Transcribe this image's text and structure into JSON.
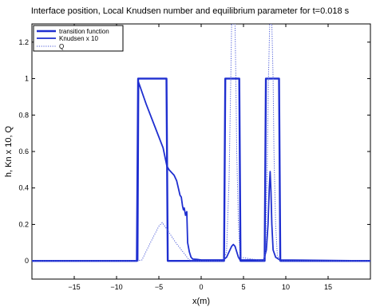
{
  "chart_data": {
    "type": "line",
    "title": "Interface position, Local Knudsen number and equilibrium parameter for t=0.018 s",
    "xlabel": "x(m)",
    "ylabel": "h, Kn x 10, Q",
    "xlim": [
      -20,
      20
    ],
    "ylim": [
      -0.1,
      1.3
    ],
    "xticks": [
      -15,
      -10,
      -5,
      0,
      5,
      10,
      15
    ],
    "yticks": [
      0,
      0.2,
      0.4,
      0.6,
      0.8,
      1,
      1.2
    ],
    "xtick_labels": [
      "−15",
      "−10",
      "−5",
      "0",
      "5",
      "10",
      "15"
    ],
    "ytick_labels": [
      "0",
      "0.2",
      "0.4",
      "0.6",
      "0.8",
      "1",
      "1.2"
    ],
    "grid": false,
    "legend_position": "top-left",
    "series": [
      {
        "name": "transition function",
        "style": "solid-thick",
        "color": "#1f2fd0",
        "x": [
          -20,
          -7.6,
          -7.45,
          -4.1,
          -3.95,
          2.7,
          2.85,
          4.5,
          4.65,
          7.5,
          7.65,
          9.2,
          9.35,
          20
        ],
        "y": [
          0,
          0,
          1,
          1,
          0,
          0,
          1,
          1,
          0,
          0,
          1,
          1,
          0,
          0
        ]
      },
      {
        "name": "Knudsen x 10",
        "style": "solid",
        "color": "#1f2fd0",
        "x": [
          -20,
          -7.5,
          -7.4,
          -6.5,
          -5.5,
          -4.5,
          -4.05,
          -3.8,
          -3.2,
          -2.9,
          -2.7,
          -2.5,
          -2.35,
          -2.2,
          -2.1,
          -2.0,
          -1.85,
          -1.7,
          -1.6,
          -1.4,
          -1.2,
          -1.0,
          -0.5,
          0,
          2.6,
          3.0,
          3.3,
          3.6,
          3.8,
          4.0,
          4.2,
          4.4,
          4.6,
          7.4,
          7.7,
          7.9,
          8.05,
          8.15,
          8.25,
          8.35,
          8.5,
          8.8,
          9.3,
          20
        ],
        "y": [
          0,
          0,
          0.98,
          0.86,
          0.74,
          0.62,
          0.52,
          0.5,
          0.47,
          0.44,
          0.4,
          0.36,
          0.35,
          0.3,
          0.28,
          0.29,
          0.25,
          0.27,
          0.1,
          0.05,
          0.02,
          0.01,
          0.008,
          0.005,
          0.005,
          0.02,
          0.05,
          0.08,
          0.09,
          0.08,
          0.05,
          0.02,
          0.005,
          0.005,
          0.06,
          0.2,
          0.4,
          0.49,
          0.38,
          0.2,
          0.06,
          0.02,
          0.005,
          0
        ]
      },
      {
        "name": "Q",
        "style": "dotted",
        "color": "#4b5bd8",
        "x": [
          -20,
          -7.6,
          -7.0,
          -6.0,
          -5.0,
          -4.6,
          -4.0,
          -3.0,
          -2.0,
          -1.5,
          -1.2,
          2.6,
          3.0,
          3.3,
          3.5,
          3.6,
          3.7,
          3.8,
          4.0,
          4.1,
          4.2,
          4.4,
          4.6,
          7.4,
          7.6,
          7.8,
          7.95,
          8.1,
          8.2,
          8.35,
          8.5,
          8.6,
          8.8,
          9.0,
          9.3,
          20
        ],
        "y": [
          0,
          0,
          0.005,
          0.1,
          0.19,
          0.21,
          0.17,
          0.1,
          0.04,
          0.01,
          0,
          0,
          0.05,
          0.45,
          1.0,
          1.3,
          1.3,
          1.3,
          1.3,
          1.0,
          0.6,
          0.2,
          0.02,
          0,
          0.05,
          0.5,
          1.0,
          1.3,
          1.3,
          1.3,
          1.0,
          0.6,
          0.2,
          0.03,
          0,
          0
        ]
      }
    ]
  }
}
